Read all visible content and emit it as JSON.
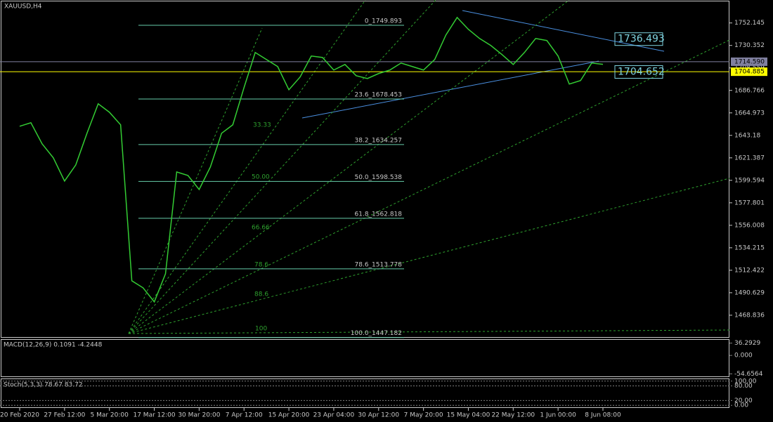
{
  "chart_data": {
    "type": "line",
    "title": "XAUUSD,H4",
    "categories": [
      "20 Feb 2020",
      null,
      null,
      null,
      "27 Feb 12:00",
      null,
      null,
      null,
      "5 Mar 20:00",
      null,
      null,
      null,
      "17 Mar 12:00",
      null,
      null,
      null,
      "30 Mar 20:00",
      null,
      null,
      null,
      "7 Apr 12:00",
      null,
      null,
      null,
      "15 Apr 20:00",
      null,
      null,
      null,
      "23 Apr 04:00",
      null,
      null,
      null,
      "30 Apr 12:00",
      null,
      null,
      null,
      "7 May 20:00",
      null,
      null,
      null,
      "15 May 04:00",
      null,
      null,
      null,
      "22 May 12:00",
      null,
      null,
      null,
      "1 Jun 00:00",
      null,
      null,
      null,
      "8 Jun 08:00"
    ],
    "values": [
      1652,
      1655.4,
      1635,
      1621.4,
      1598.9,
      1614.5,
      1645.2,
      1673.8,
      1665.6,
      1653.4,
      1502.2,
      1495.4,
      1481.8,
      1509,
      1607.7,
      1604.3,
      1590.7,
      1612.5,
      1645.2,
      1653.4,
      1689.5,
      1723.5,
      1716.7,
      1709.9,
      1687.4,
      1699.7,
      1720.1,
      1718.7,
      1706.5,
      1711.9,
      1701,
      1698.3,
      1703.1,
      1706.5,
      1713.3,
      1709.9,
      1706.5,
      1716.7,
      1740.5,
      1757.5,
      1746,
      1737.1,
      1730.3,
      1721.5,
      1711.9,
      1723.5,
      1737.1,
      1735.1,
      1720.1,
      1692.9,
      1696.3,
      1713.3,
      1712
    ],
    "color": "#33cc33",
    "ylim": [
      1447,
      1771
    ],
    "yticks": [
      1752.145,
      1730.352,
      1708.559,
      1686.766,
      1664.973,
      1643.18,
      1621.387,
      1599.594,
      1577.801,
      1556.008,
      1534.215,
      1512.422,
      1490.629,
      1468.836
    ],
    "fib_levels": [
      {
        "value": 1749.893,
        "label": "0_1749.893"
      },
      {
        "value": 1678.453,
        "label": "23.6_1678.453"
      },
      {
        "value": 1634.257,
        "label": "38.2_1634.257"
      },
      {
        "value": 1598.538,
        "label": "50.0_1598.538"
      },
      {
        "value": 1562.818,
        "label": "61.8_1562.818"
      },
      {
        "value": 1513.778,
        "label": "78.6_1513.778"
      },
      {
        "value": 1447.182,
        "label": "100.0_1447.182"
      }
    ],
    "fan_labels": [
      "33.33",
      "50.00",
      "66.66",
      "78.6",
      "88.6",
      "100"
    ],
    "price_lines": [
      {
        "value": 1714.59,
        "label": "1714.590",
        "color": "#8080a0"
      },
      {
        "value": 1704.885,
        "label": "1704.885",
        "color": "#ffff00"
      }
    ],
    "callouts": [
      {
        "value": 1736.493,
        "label": "1736.493"
      },
      {
        "value": 1704.652,
        "label": "1704.652"
      }
    ],
    "macd": {
      "label": "MACD(12,26,9) 0.1091 -4.2448",
      "ylim": [
        -62,
        46
      ],
      "yticks": [
        36.2929,
        {
          "value": 0,
          "label": "0.000"
        },
        -54.6564
      ]
    },
    "stoch": {
      "label": "Stoch(5,3,3) 78.67 83.72",
      "ylim": [
        -8,
        108
      ],
      "yticks": [
        {
          "value": 100,
          "label": "100.00"
        },
        {
          "value": 80,
          "label": "80.00"
        },
        {
          "value": 20,
          "label": "20.00"
        },
        {
          "value": 0,
          "label": "0.00"
        }
      ]
    }
  }
}
